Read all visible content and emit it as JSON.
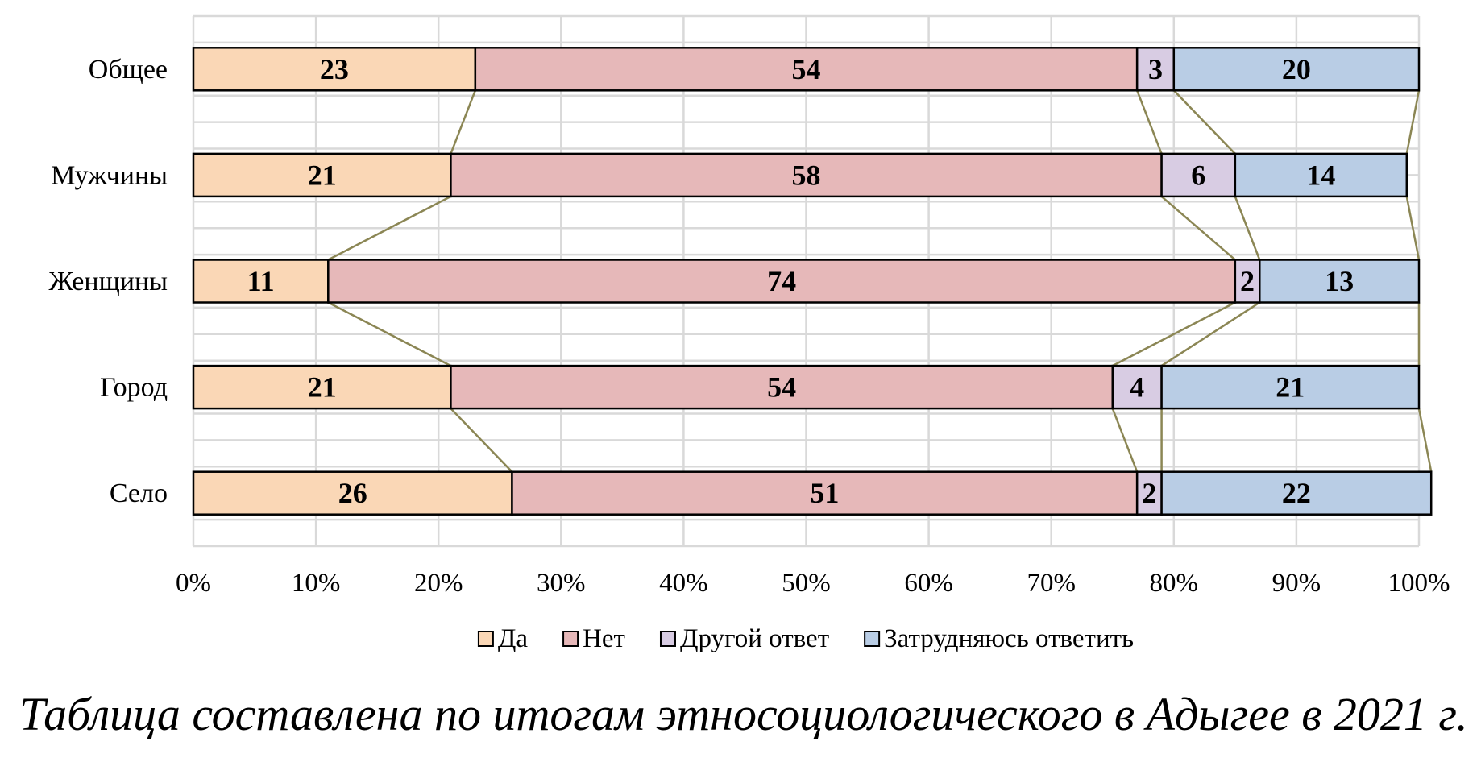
{
  "chart_data": {
    "type": "bar",
    "orientation": "horizontal",
    "stacked": "percent",
    "categories": [
      "Общее",
      "Мужчины",
      "Женщины",
      "Город",
      "Село"
    ],
    "series": [
      {
        "name": "Да",
        "values": [
          23,
          21,
          11,
          21,
          26
        ],
        "color": "#FAD7B6"
      },
      {
        "name": "Нет",
        "values": [
          54,
          58,
          74,
          54,
          51
        ],
        "color": "#E6B8B9"
      },
      {
        "name": "Другой ответ",
        "values": [
          3,
          6,
          2,
          4,
          2
        ],
        "color": "#D8CCE3"
      },
      {
        "name": "Затрудняюсь ответить",
        "values": [
          20,
          14,
          13,
          21,
          22
        ],
        "color": "#B9CDE5"
      }
    ],
    "x_ticks": [
      "0%",
      "10%",
      "20%",
      "30%",
      "40%",
      "50%",
      "60%",
      "70%",
      "80%",
      "90%",
      "100%"
    ],
    "xlim": [
      0,
      100
    ],
    "grid": true,
    "series_lines": true,
    "legend_position": "bottom",
    "series_line_color": "#8B8654"
  },
  "caption": "Таблица составлена по итогам этносоциологического в Адыгее в 2021 г."
}
